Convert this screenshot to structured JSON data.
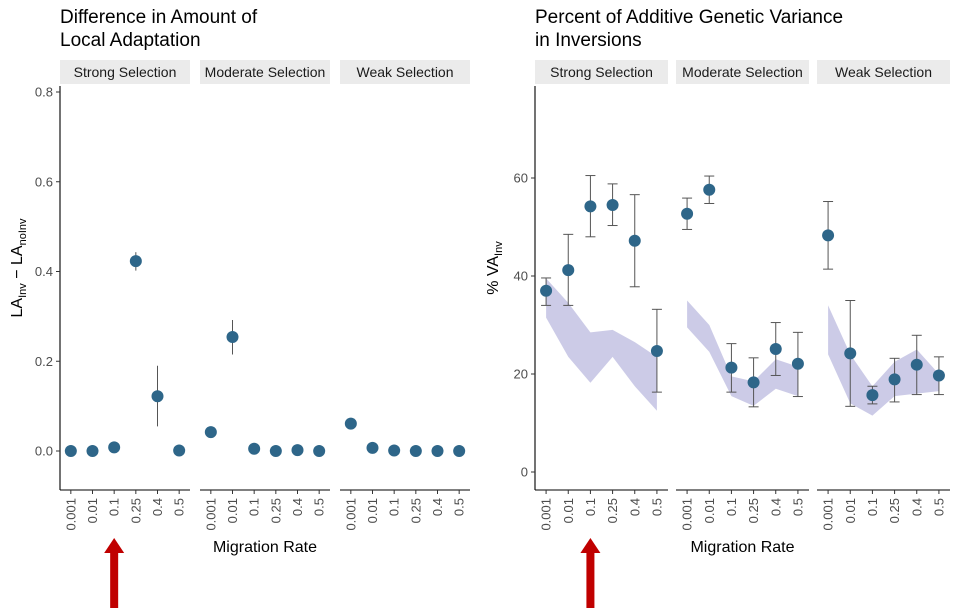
{
  "chart_data": [
    {
      "type": "scatter",
      "title_lines": [
        "Difference in Amount of",
        "Local Adaptation"
      ],
      "ylabel": "LA_Inv − LA_noInv",
      "xlabel": "Migration Rate",
      "ylim": [
        -0.085,
        0.81
      ],
      "yticks": [
        0.0,
        0.2,
        0.4,
        0.6,
        0.8
      ],
      "ytick_labels": [
        "0.0",
        "0.2",
        "0.4",
        "0.6",
        "0.8"
      ],
      "categories": [
        "0.001",
        "0.01",
        "0.1",
        "0.25",
        "0.4",
        "0.5"
      ],
      "facets": [
        {
          "name": "Strong Selection",
          "values": [
            0.0,
            0.0,
            0.008,
            0.423,
            0.122,
            0.001
          ],
          "err_low": [
            null,
            null,
            null,
            0.402,
            0.055,
            null
          ],
          "err_high": [
            null,
            null,
            null,
            0.443,
            0.19,
            null
          ]
        },
        {
          "name": "Moderate Selection",
          "values": [
            0.042,
            0.254,
            0.005,
            0.0,
            0.002,
            0.0
          ],
          "err_low": [
            null,
            0.215,
            null,
            null,
            null,
            null
          ],
          "err_high": [
            null,
            0.292,
            null,
            null,
            null,
            null
          ]
        },
        {
          "name": "Weak Selection",
          "values": [
            0.061,
            0.007,
            0.001,
            0.0,
            0.0,
            0.0
          ],
          "err_low": [
            0.053,
            null,
            null,
            null,
            null,
            null
          ],
          "err_high": [
            0.069,
            null,
            null,
            null,
            null,
            null
          ]
        }
      ],
      "grid": false,
      "point_color": "#2e6689"
    },
    {
      "type": "scatter",
      "title_lines": [
        "Percent of Additive Genetic Variance",
        "in Inversions"
      ],
      "ylabel": "% VA_Inv",
      "xlabel": "Migration Rate",
      "ylim": [
        -2,
        78
      ],
      "yticks": [
        0,
        20,
        40,
        60
      ],
      "ytick_labels": [
        "0",
        "20",
        "40",
        "60"
      ],
      "categories": [
        "0.001",
        "0.01",
        "0.1",
        "0.25",
        "0.4",
        "0.5"
      ],
      "facets": [
        {
          "name": "Strong Selection",
          "values": [
            37,
            41.2,
            54.2,
            54.5,
            47.2,
            24.7
          ],
          "err_low": [
            34,
            34,
            48,
            50.3,
            37.8,
            16.3
          ],
          "err_high": [
            39.6,
            48.5,
            60.5,
            58.8,
            56.6,
            33.2
          ],
          "band_low": [
            31.5,
            23.5,
            18.2,
            23.5,
            17.5,
            12.5
          ],
          "band_high": [
            39.5,
            34.5,
            28.5,
            29,
            26.5,
            23.5
          ]
        },
        {
          "name": "Moderate Selection",
          "values": [
            52.7,
            57.6,
            21.3,
            18.3,
            25.1,
            22.1
          ],
          "err_low": [
            49.5,
            54.8,
            16.3,
            13.3,
            19.7,
            15.4
          ],
          "err_high": [
            55.9,
            60.4,
            26.2,
            23.3,
            30.5,
            28.5
          ],
          "band_low": [
            29.5,
            24.5,
            15.5,
            13.5,
            17,
            15.5
          ],
          "band_high": [
            35,
            30,
            19.5,
            18.5,
            23,
            21.5
          ]
        },
        {
          "name": "Weak Selection",
          "values": [
            48.3,
            24.2,
            15.7,
            18.9,
            21.9,
            19.7
          ],
          "err_low": [
            41.4,
            13.4,
            13.9,
            14.3,
            15.8,
            15.8
          ],
          "err_high": [
            55.2,
            35,
            17.5,
            23.2,
            27.9,
            23.5
          ],
          "band_low": [
            24,
            14,
            11.5,
            15.5,
            16,
            16.5
          ],
          "band_high": [
            34,
            24,
            17.5,
            22.5,
            25,
            20
          ]
        }
      ],
      "grid": false,
      "point_color": "#2e6689",
      "band_color": "#c9c8e6"
    }
  ],
  "annotations": [
    {
      "type": "arrow",
      "color": "#c00000",
      "points_to": "0.1 (Strong Selection)",
      "chart": 1
    },
    {
      "type": "arrow",
      "color": "#c00000",
      "points_to": "0.1 (Strong Selection)",
      "chart": 2
    }
  ]
}
